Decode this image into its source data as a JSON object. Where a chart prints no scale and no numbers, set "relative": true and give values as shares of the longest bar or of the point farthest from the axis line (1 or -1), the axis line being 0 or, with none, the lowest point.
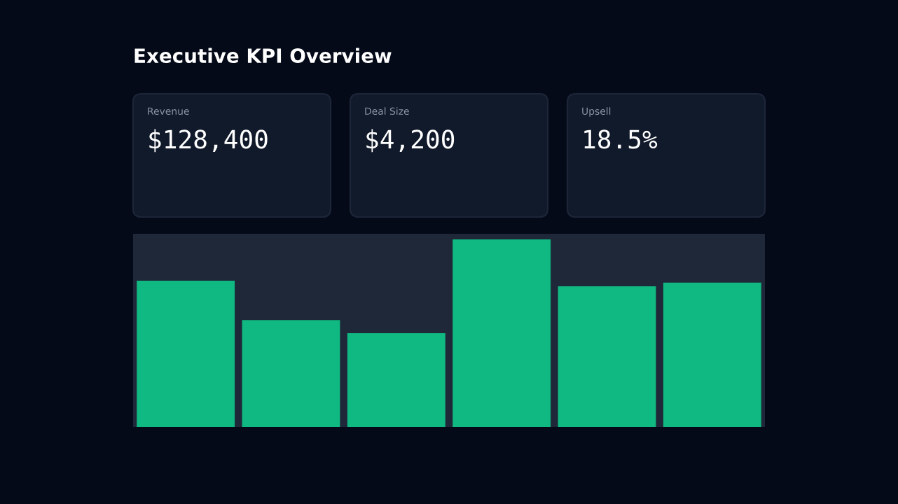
{
  "chart_data": [
    {
      "type": "other",
      "title": "Executive KPI Overview",
      "annotations": [
        "Revenue",
        "$128,400",
        "Deal Size",
        "$4,200",
        "Upsell",
        "18.5%"
      ]
    },
    {
      "type": "bar",
      "relative": true,
      "categories": [
        null,
        null,
        null,
        null,
        null,
        null
      ],
      "values": [
        0.78,
        0.57,
        0.5,
        1,
        0.75,
        0.77
      ],
      "color": "#10b981",
      "grid": false
    }
  ]
}
